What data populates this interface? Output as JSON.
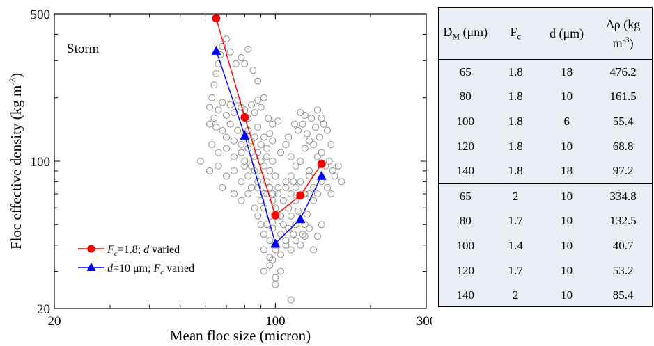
{
  "chart_data": {
    "type": "scatter",
    "xlabel": "Mean floc size (micron)",
    "ylabel": "Floc effective density (kg m-3)",
    "x_scale": "log",
    "y_scale": "log",
    "xlim": [
      20,
      300
    ],
    "ylim": [
      20,
      500
    ],
    "x_ticks": [
      20,
      100,
      300
    ],
    "y_ticks": [
      20,
      100,
      500
    ],
    "x_tick_labels": [
      "20",
      "100",
      "300"
    ],
    "y_tick_labels": [
      "20",
      "100",
      "500"
    ],
    "annotation": "Storm",
    "legend_position": "bottom-left",
    "series": [
      {
        "name": "Fc=1.8; d varied",
        "color": "#ff0000",
        "marker": "circle",
        "x": [
          65,
          80,
          100,
          120,
          140
        ],
        "y": [
          476.2,
          161.5,
          55.4,
          68.8,
          97.2
        ]
      },
      {
        "name": "d=10 μm; Fc varied",
        "color": "#0000ff",
        "marker": "triangle",
        "x": [
          65,
          80,
          100,
          120,
          140
        ],
        "y": [
          334.8,
          132.5,
          40.7,
          53.2,
          85.4
        ]
      }
    ],
    "scatter_observations": [
      [
        63,
        200
      ],
      [
        64,
        230
      ],
      [
        65,
        260
      ],
      [
        66,
        290
      ],
      [
        67,
        320
      ],
      [
        68,
        350
      ],
      [
        70,
        380
      ],
      [
        72,
        330
      ],
      [
        75,
        290
      ],
      [
        78,
        310
      ],
      [
        80,
        290
      ],
      [
        82,
        340
      ],
      [
        85,
        270
      ],
      [
        88,
        240
      ],
      [
        62,
        180
      ],
      [
        64,
        160
      ],
      [
        66,
        175
      ],
      [
        68,
        190
      ],
      [
        70,
        165
      ],
      [
        72,
        185
      ],
      [
        74,
        170
      ],
      [
        76,
        195
      ],
      [
        78,
        180
      ],
      [
        80,
        175
      ],
      [
        82,
        160
      ],
      [
        84,
        185
      ],
      [
        86,
        170
      ],
      [
        88,
        195
      ],
      [
        90,
        180
      ],
      [
        92,
        200
      ],
      [
        95,
        160
      ],
      [
        98,
        150
      ],
      [
        102,
        155
      ],
      [
        110,
        130
      ],
      [
        115,
        150
      ],
      [
        62,
        150
      ],
      [
        65,
        145
      ],
      [
        68,
        140
      ],
      [
        70,
        130
      ],
      [
        72,
        150
      ],
      [
        74,
        125
      ],
      [
        76,
        140
      ],
      [
        78,
        120
      ],
      [
        80,
        135
      ],
      [
        82,
        140
      ],
      [
        84,
        125
      ],
      [
        86,
        130
      ],
      [
        88,
        145
      ],
      [
        90,
        120
      ],
      [
        92,
        130
      ],
      [
        94,
        115
      ],
      [
        96,
        135
      ],
      [
        98,
        125
      ],
      [
        63,
        120
      ],
      [
        66,
        110
      ],
      [
        70,
        115
      ],
      [
        74,
        105
      ],
      [
        78,
        110
      ],
      [
        80,
        100
      ],
      [
        82,
        115
      ],
      [
        84,
        95
      ],
      [
        86,
        105
      ],
      [
        88,
        110
      ],
      [
        90,
        100
      ],
      [
        92,
        95
      ],
      [
        94,
        105
      ],
      [
        96,
        90
      ],
      [
        98,
        100
      ],
      [
        58,
        100
      ],
      [
        62,
        90
      ],
      [
        66,
        95
      ],
      [
        70,
        85
      ],
      [
        74,
        90
      ],
      [
        78,
        80
      ],
      [
        80,
        95
      ],
      [
        82,
        85
      ],
      [
        84,
        75
      ],
      [
        86,
        90
      ],
      [
        88,
        80
      ],
      [
        90,
        85
      ],
      [
        92,
        70
      ],
      [
        94,
        80
      ],
      [
        96,
        75
      ],
      [
        98,
        70
      ],
      [
        100,
        85
      ],
      [
        102,
        75
      ],
      [
        68,
        75
      ],
      [
        74,
        70
      ],
      [
        78,
        65
      ],
      [
        82,
        70
      ],
      [
        86,
        60
      ],
      [
        88,
        75
      ],
      [
        90,
        65
      ],
      [
        92,
        60
      ],
      [
        94,
        70
      ],
      [
        96,
        55
      ],
      [
        98,
        65
      ],
      [
        100,
        60
      ],
      [
        102,
        70
      ],
      [
        104,
        55
      ],
      [
        106,
        65
      ],
      [
        108,
        75
      ],
      [
        110,
        60
      ],
      [
        112,
        70
      ],
      [
        114,
        80
      ],
      [
        116,
        65
      ],
      [
        88,
        55
      ],
      [
        90,
        50
      ],
      [
        92,
        45
      ],
      [
        94,
        50
      ],
      [
        96,
        42
      ],
      [
        98,
        48
      ],
      [
        100,
        40
      ],
      [
        102,
        52
      ],
      [
        104,
        45
      ],
      [
        106,
        50
      ],
      [
        108,
        42
      ],
      [
        110,
        48
      ],
      [
        112,
        55
      ],
      [
        114,
        45
      ],
      [
        116,
        50
      ],
      [
        118,
        58
      ],
      [
        120,
        52
      ],
      [
        122,
        45
      ],
      [
        124,
        50
      ],
      [
        126,
        56
      ],
      [
        92,
        38
      ],
      [
        96,
        35
      ],
      [
        100,
        38
      ],
      [
        104,
        36
      ],
      [
        108,
        40
      ],
      [
        112,
        38
      ],
      [
        116,
        42
      ],
      [
        120,
        40
      ],
      [
        124,
        44
      ],
      [
        128,
        48
      ],
      [
        132,
        38
      ],
      [
        136,
        44
      ],
      [
        140,
        50
      ],
      [
        104,
        110
      ],
      [
        108,
        120
      ],
      [
        112,
        105
      ],
      [
        116,
        95
      ],
      [
        120,
        100
      ],
      [
        124,
        115
      ],
      [
        128,
        90
      ],
      [
        132,
        120
      ],
      [
        136,
        105
      ],
      [
        140,
        110
      ],
      [
        144,
        95
      ],
      [
        148,
        100
      ],
      [
        152,
        90
      ],
      [
        108,
        80
      ],
      [
        112,
        85
      ],
      [
        116,
        75
      ],
      [
        120,
        80
      ],
      [
        124,
        70
      ],
      [
        128,
        85
      ],
      [
        132,
        75
      ],
      [
        136,
        70
      ],
      [
        140,
        80
      ],
      [
        146,
        75
      ],
      [
        150,
        70
      ],
      [
        154,
        85
      ],
      [
        158,
        95
      ],
      [
        162,
        80
      ],
      [
        128,
        70
      ],
      [
        132,
        65
      ],
      [
        118,
        140
      ],
      [
        122,
        150
      ],
      [
        126,
        135
      ],
      [
        130,
        160
      ],
      [
        134,
        145
      ],
      [
        138,
        130
      ],
      [
        142,
        150
      ],
      [
        146,
        140
      ],
      [
        150,
        120
      ],
      [
        120,
        170
      ],
      [
        124,
        165
      ],
      [
        136,
        175
      ],
      [
        140,
        160
      ],
      [
        128,
        125
      ],
      [
        92,
        30
      ],
      [
        96,
        32
      ],
      [
        100,
        28
      ],
      [
        104,
        30
      ],
      [
        100,
        26
      ],
      [
        98,
        34
      ],
      [
        112,
        22
      ]
    ]
  },
  "legend": {
    "red_line_label": "Fc=1.8; d varied",
    "blue_line_label": "d=10 μm; Fc varied"
  },
  "table": {
    "columns": [
      "D_M (μm)",
      "F_c",
      "d (μm)",
      "Δρ (kg m-3)"
    ],
    "rows": [
      [
        "65",
        "1.8",
        "18",
        "476.2"
      ],
      [
        "80",
        "1.8",
        "10",
        "161.5"
      ],
      [
        "100",
        "1.8",
        "6",
        "55.4"
      ],
      [
        "120",
        "1.8",
        "10",
        "68.8"
      ],
      [
        "140",
        "1.8",
        "18",
        "97.2"
      ],
      [
        "65",
        "2",
        "10",
        "334.8"
      ],
      [
        "80",
        "1.7",
        "10",
        "132.5"
      ],
      [
        "100",
        "1.4",
        "10",
        "40.7"
      ],
      [
        "120",
        "1.7",
        "10",
        "53.2"
      ],
      [
        "140",
        "2",
        "10",
        "85.4"
      ]
    ]
  }
}
